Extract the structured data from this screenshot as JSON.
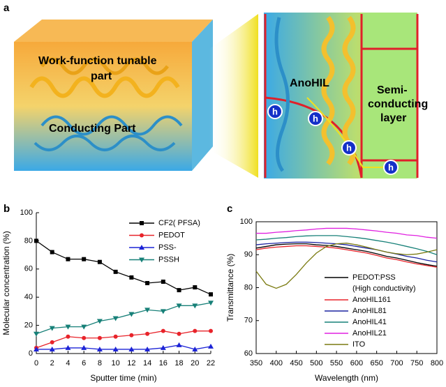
{
  "panels": [
    "a",
    "b",
    "c"
  ],
  "diagram": {
    "left_box": {
      "top_label": [
        "Work-function tunable",
        "part"
      ],
      "bottom_label": "Conducting Part"
    },
    "right_box": {
      "hil_label": "AnoHIL",
      "layer_label": [
        "Semi-",
        "conducting",
        "layer"
      ],
      "hole_label": "h"
    }
  },
  "chart_data": [
    {
      "type": "line",
      "x": [
        0,
        2,
        4,
        6,
        8,
        10,
        12,
        14,
        16,
        18,
        20,
        22
      ],
      "xlabel": "Sputter time (min)",
      "ylabel": "Molecular concentration (%)",
      "xlim": [
        0,
        22
      ],
      "xticks": [
        0,
        2,
        4,
        6,
        8,
        10,
        12,
        14,
        16,
        18,
        20,
        22
      ],
      "ylim": [
        0,
        100
      ],
      "yticks": [
        0,
        20,
        40,
        60,
        80,
        100
      ],
      "series": [
        {
          "name": "CF2( PFSA)",
          "color": "#000000",
          "marker": "square",
          "values": [
            80,
            72,
            67,
            67,
            65,
            58,
            54,
            50,
            51,
            45,
            47,
            42
          ]
        },
        {
          "name": "PEDOT",
          "color": "#e8232a",
          "marker": "circle",
          "values": [
            4,
            8,
            12,
            11,
            11,
            12,
            13,
            14,
            16,
            14,
            16,
            16
          ]
        },
        {
          "name": "PSS-",
          "color": "#1c23d6",
          "marker": "triangle",
          "values": [
            3,
            3,
            4,
            4,
            3,
            3,
            3,
            3,
            4,
            6,
            3,
            5
          ]
        },
        {
          "name": "PSSH",
          "color": "#178078",
          "marker": "triangle-down",
          "values": [
            14,
            18,
            19,
            19,
            23,
            25,
            28,
            31,
            30,
            34,
            34,
            36
          ]
        }
      ]
    },
    {
      "type": "line",
      "x": [
        350,
        375,
        400,
        425,
        450,
        475,
        500,
        525,
        550,
        575,
        600,
        625,
        650,
        675,
        700,
        725,
        750,
        775,
        800
      ],
      "xlabel": "Wavelength (nm)",
      "ylabel": "Transmittance (%)",
      "xlim": [
        350,
        800
      ],
      "xticks": [
        350,
        400,
        450,
        500,
        550,
        600,
        650,
        700,
        750,
        800
      ],
      "ylim": [
        60,
        100
      ],
      "yticks": [
        60,
        70,
        80,
        90,
        100
      ],
      "legend_note": "(High conductivity)",
      "series": [
        {
          "name": "PEDOT:PSS",
          "color": "#000000",
          "values": [
            92,
            92.5,
            93,
            93.2,
            93.3,
            93.3,
            93,
            92.8,
            92.5,
            92,
            91.5,
            91,
            90.3,
            89.5,
            89,
            88.3,
            87.6,
            87,
            86.5
          ]
        },
        {
          "name": "AnoHIL161",
          "color": "#e8232a",
          "values": [
            91.5,
            92,
            92.3,
            92.5,
            92.7,
            92.7,
            92.5,
            92.3,
            92,
            91.5,
            91,
            90.5,
            89.8,
            89,
            88.5,
            87.8,
            87.2,
            86.7,
            86.2
          ]
        },
        {
          "name": "AnoHIL81",
          "color": "#1c23a0",
          "values": [
            93,
            93.3,
            93.5,
            93.7,
            93.8,
            93.8,
            93.7,
            93.5,
            93.3,
            93,
            92.5,
            92,
            91.5,
            90.8,
            90.2,
            89.5,
            89,
            88.3,
            87.8
          ]
        },
        {
          "name": "AnoHIL41",
          "color": "#178078",
          "values": [
            94.5,
            94.7,
            95,
            95.2,
            95.5,
            95.7,
            95.8,
            95.8,
            95.8,
            95.5,
            95.2,
            94.8,
            94.3,
            93.8,
            93.2,
            92.5,
            91.8,
            91,
            90
          ]
        },
        {
          "name": "AnoHIL21",
          "color": "#e020e0",
          "values": [
            96.5,
            96.5,
            96.8,
            97,
            97.3,
            97.5,
            97.8,
            98,
            98,
            98,
            97.8,
            97.5,
            97.2,
            96.8,
            96.5,
            96,
            95.8,
            95.3,
            95
          ]
        },
        {
          "name": "ITO",
          "color": "#7a7a10",
          "values": [
            85,
            81,
            79.8,
            81,
            84,
            87.5,
            90.5,
            92.5,
            93.3,
            93.5,
            93,
            92.3,
            91.5,
            90.8,
            90.3,
            90,
            90.2,
            90.8,
            91.5
          ]
        }
      ]
    }
  ]
}
